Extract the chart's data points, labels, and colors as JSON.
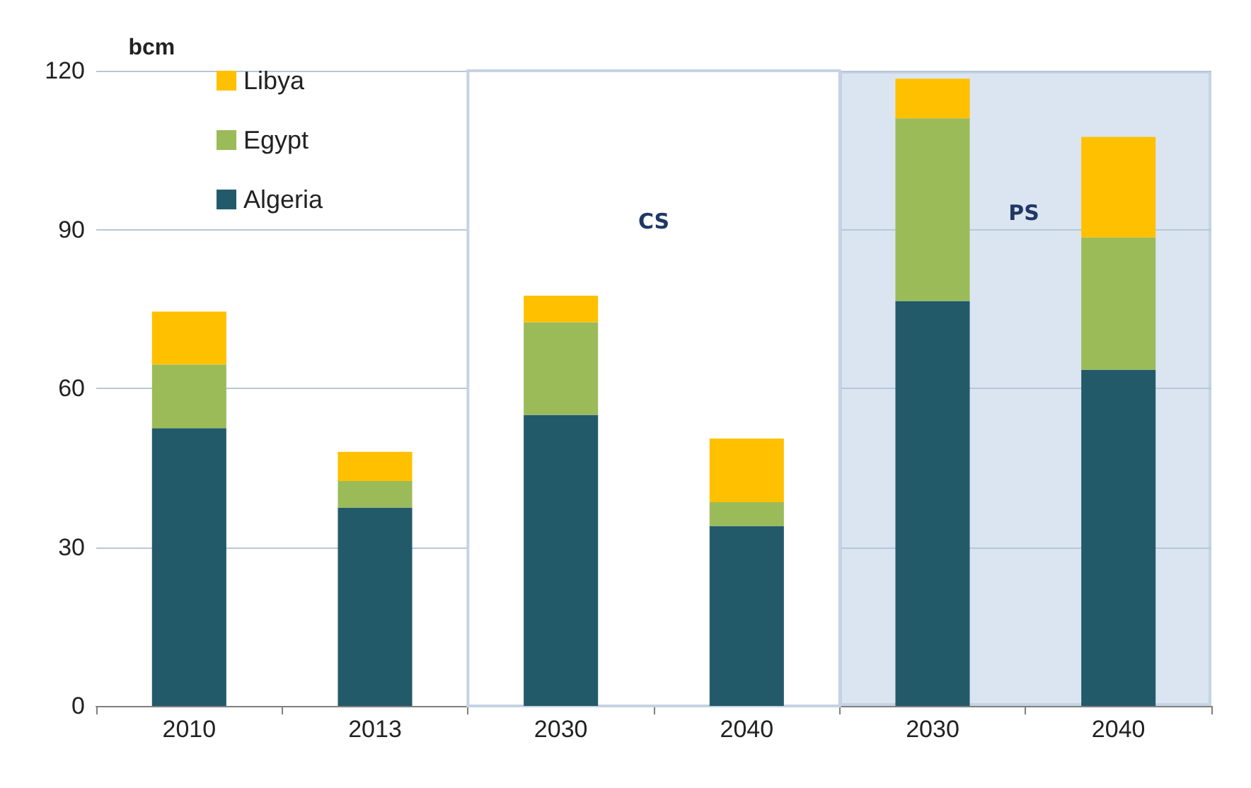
{
  "chart_data": {
    "type": "bar",
    "stacked": true,
    "ylabel": "bcm",
    "categories": [
      "2010",
      "2013",
      "2030",
      "2040",
      "2030",
      "2040"
    ],
    "series": [
      {
        "name": "Algeria",
        "color": "#235a6a",
        "values": [
          52.5,
          37.5,
          55,
          34,
          76.5,
          63.5
        ]
      },
      {
        "name": "Egypt",
        "color": "#9bbb59",
        "values": [
          12,
          5,
          17.5,
          4.5,
          34.5,
          25
        ]
      },
      {
        "name": "Libya",
        "color": "#ffc000",
        "values": [
          10,
          5.5,
          5,
          12,
          7.5,
          19
        ]
      }
    ],
    "ylim": [
      0,
      120
    ],
    "yticks": [
      0,
      30,
      60,
      90,
      120
    ],
    "grid": "y",
    "legend": "top left",
    "bands": [
      {
        "axis": "x",
        "from": "2030",
        "to": "2040",
        "label": "CS",
        "color": "#ffffff"
      }
    ],
    "annotations": [
      "PS"
    ]
  }
}
